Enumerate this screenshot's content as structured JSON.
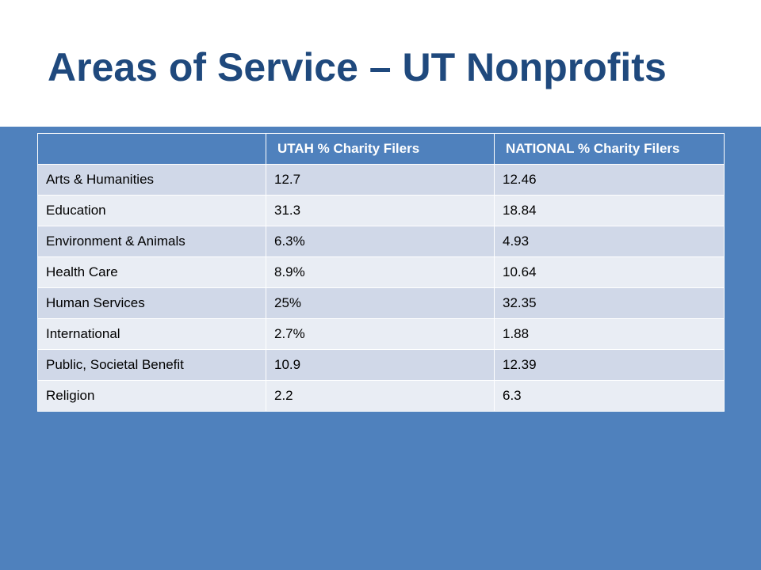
{
  "slide": {
    "title": "Areas of Service – UT Nonprofits"
  },
  "table": {
    "headers": [
      "",
      "UTAH % Charity Filers",
      "NATIONAL % Charity Filers"
    ],
    "rows": [
      [
        "Arts & Humanities",
        "12.7",
        "12.46"
      ],
      [
        "Education",
        "31.3",
        "18.84"
      ],
      [
        "Environment & Animals",
        "6.3%",
        "4.93"
      ],
      [
        "Health Care",
        "8.9%",
        "10.64"
      ],
      [
        "Human Services",
        "25%",
        "32.35"
      ],
      [
        "International",
        "2.7%",
        "1.88"
      ],
      [
        "Public, Societal Benefit",
        "10.9",
        "12.39"
      ],
      [
        "Religion",
        "2.2",
        "6.3"
      ]
    ]
  },
  "colors": {
    "title": "#1f497d",
    "band": "#4f81bd",
    "row_odd": "#d0d8e8",
    "row_even": "#e9edf4"
  }
}
